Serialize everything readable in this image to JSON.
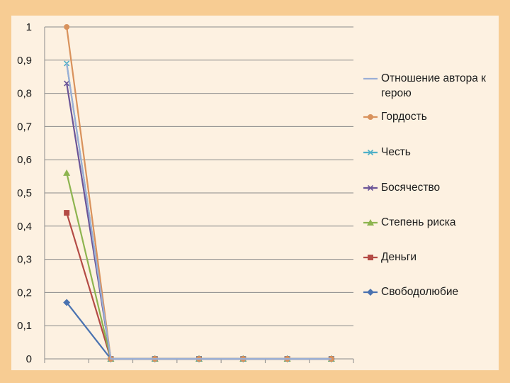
{
  "chart_data": {
    "type": "line",
    "categories": [
      "",
      "",
      "",
      "",
      "",
      "",
      ""
    ],
    "ylim": [
      0,
      1
    ],
    "y_ticks": [
      "0",
      "0,1",
      "0,2",
      "0,3",
      "0,4",
      "0,5",
      "0,6",
      "0,7",
      "0,8",
      "0,9",
      "1"
    ],
    "grid": true,
    "legend_position": "right",
    "series": [
      {
        "name": "Отношение автора к герою",
        "values": [
          0.89,
          0,
          0,
          0,
          0,
          0,
          0
        ],
        "color": "#9aaed6",
        "marker": "none"
      },
      {
        "name": "Гордость",
        "values": [
          1.0,
          0,
          0,
          0,
          0,
          0,
          0
        ],
        "color": "#d9925c",
        "marker": "circle"
      },
      {
        "name": "Честь",
        "values": [
          0.89,
          0,
          0,
          0,
          0,
          0,
          0
        ],
        "color": "#4fb0c8",
        "marker": "x"
      },
      {
        "name": "Босячество",
        "values": [
          0.83,
          0,
          0,
          0,
          0,
          0,
          0
        ],
        "color": "#6b5497",
        "marker": "x"
      },
      {
        "name": "Степень риска",
        "values": [
          0.56,
          0,
          0,
          0,
          0,
          0,
          0
        ],
        "color": "#8db44f",
        "marker": "triangle"
      },
      {
        "name": "Деньги",
        "values": [
          0.44,
          0,
          0,
          0,
          0,
          0,
          0
        ],
        "color": "#b44b45",
        "marker": "square"
      },
      {
        "name": "Свободолюбие",
        "values": [
          0.17,
          0,
          0,
          0,
          0,
          0,
          0
        ],
        "color": "#4a72b0",
        "marker": "diamond"
      }
    ]
  }
}
